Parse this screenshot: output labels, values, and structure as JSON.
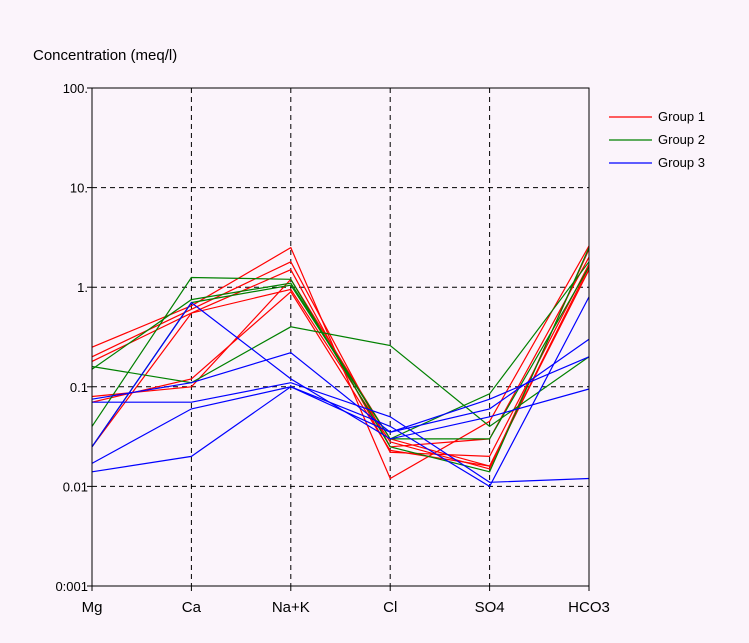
{
  "chart_data": {
    "type": "line",
    "title": "",
    "ylabel": "Concentration (meq/l)",
    "xlabel": "",
    "y_scale": "log",
    "ylim": [
      0.001,
      100
    ],
    "grid": true,
    "legend_position": "right",
    "categories": [
      "Mg",
      "Ca",
      "Na+K",
      "Cl",
      "SO4",
      "HCO3"
    ],
    "y_tick_labels": [
      "100.",
      "10.",
      "1.",
      "0.1",
      "0.01",
      "0:001"
    ],
    "y_tick_values": [
      100,
      10,
      1,
      0.1,
      0.01,
      0.001
    ],
    "legend": [
      {
        "name": "Group 1",
        "color": "#ff0000"
      },
      {
        "name": "Group 2",
        "color": "#008000"
      },
      {
        "name": "Group 3",
        "color": "#0000ff"
      }
    ],
    "series": [
      {
        "group": "Group 1",
        "color": "#ff0000",
        "values": [
          0.25,
          0.65,
          2.5,
          0.012,
          0.045,
          2.6
        ]
      },
      {
        "group": "Group 1",
        "color": "#ff0000",
        "values": [
          0.2,
          0.6,
          1.8,
          0.025,
          0.03,
          2.0
        ]
      },
      {
        "group": "Group 1",
        "color": "#ff0000",
        "values": [
          0.18,
          0.55,
          1.5,
          0.022,
          0.02,
          1.7
        ]
      },
      {
        "group": "Group 1",
        "color": "#ff0000",
        "values": [
          0.08,
          0.1,
          1.2,
          0.03,
          0.016,
          1.6
        ]
      },
      {
        "group": "Group 1",
        "color": "#ff0000",
        "values": [
          0.025,
          0.55,
          0.95,
          0.028,
          0.015,
          2.4
        ]
      },
      {
        "group": "Group 1",
        "color": "#ff0000",
        "values": [
          0.07,
          0.12,
          0.9,
          0.023,
          0.016,
          1.5
        ]
      },
      {
        "group": "Group 2",
        "color": "#008000",
        "values": [
          0.16,
          0.11,
          0.4,
          0.26,
          0.04,
          0.2
        ]
      },
      {
        "group": "Group 2",
        "color": "#008000",
        "values": [
          0.04,
          1.25,
          1.2,
          0.025,
          0.014,
          2.5
        ]
      },
      {
        "group": "Group 2",
        "color": "#008000",
        "values": [
          0.15,
          0.75,
          1.1,
          0.03,
          0.085,
          1.8
        ]
      },
      {
        "group": "Group 2",
        "color": "#008000",
        "values": [
          0.025,
          0.7,
          1.05,
          0.03,
          0.03,
          1.6
        ]
      },
      {
        "group": "Group 3",
        "color": "#0000ff",
        "values": [
          0.075,
          0.11,
          0.22,
          0.035,
          0.075,
          0.2
        ]
      },
      {
        "group": "Group 3",
        "color": "#0000ff",
        "values": [
          0.07,
          0.07,
          0.11,
          0.05,
          0.011,
          0.012
        ]
      },
      {
        "group": "Group 3",
        "color": "#0000ff",
        "values": [
          0.017,
          0.06,
          0.1,
          0.04,
          0.01,
          0.8
        ]
      },
      {
        "group": "Group 3",
        "color": "#0000ff",
        "values": [
          0.014,
          0.02,
          0.1,
          0.035,
          0.06,
          0.3
        ]
      },
      {
        "group": "Group 3",
        "color": "#0000ff",
        "values": [
          0.025,
          0.7,
          0.12,
          0.03,
          0.05,
          0.095
        ]
      }
    ]
  }
}
